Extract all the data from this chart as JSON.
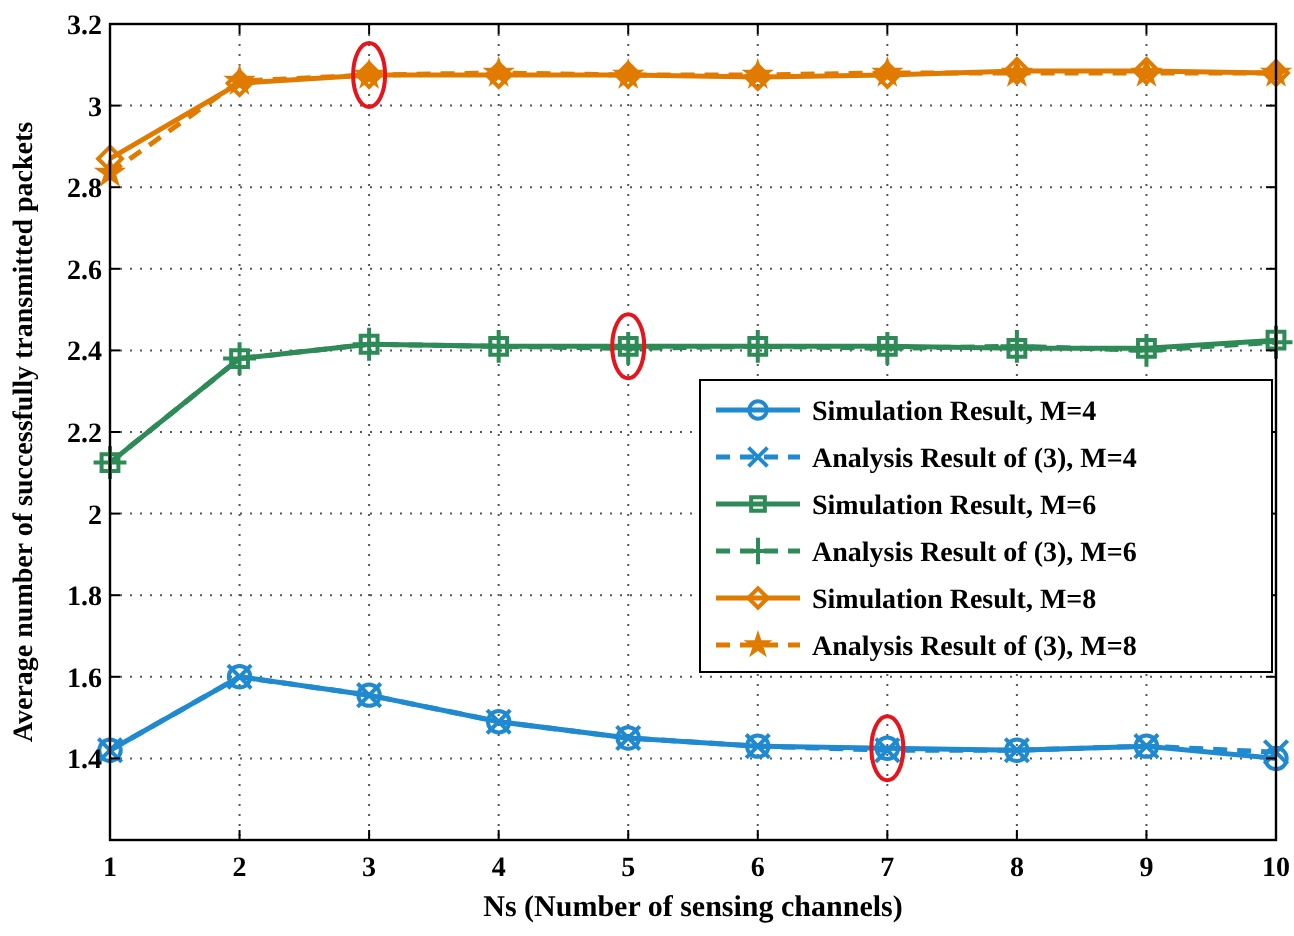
{
  "chart_data": {
    "type": "line",
    "xlabel": "Ns (Number of sensing channels)",
    "ylabel": "Average number of successfully transmitted packets",
    "x": [
      1,
      2,
      3,
      4,
      5,
      6,
      7,
      8,
      9,
      10
    ],
    "xlim": [
      1,
      10
    ],
    "xticks": [
      1,
      2,
      3,
      4,
      5,
      6,
      7,
      8,
      9,
      10
    ],
    "ylim": [
      1.2,
      3.2
    ],
    "yticks": [
      1.4,
      1.6,
      1.8,
      2,
      2.2,
      2.4,
      2.6,
      2.8,
      3,
      3.2
    ],
    "grid": true,
    "legend": "right",
    "series": [
      {
        "name": "Simulation Result, M=4",
        "color": "#1f8ad0",
        "marker": "circle",
        "line_style": "solid",
        "values": [
          1.42,
          1.6,
          1.555,
          1.49,
          1.45,
          1.43,
          1.425,
          1.42,
          1.43,
          1.4
        ]
      },
      {
        "name": "Analysis Result of (3), M=4",
        "color": "#1f8ad0",
        "marker": "cross",
        "line_style": "dashed",
        "values": [
          1.42,
          1.6,
          1.555,
          1.49,
          1.45,
          1.43,
          1.42,
          1.42,
          1.43,
          1.415
        ]
      },
      {
        "name": "Simulation Result, M=6",
        "color": "#2e8b57",
        "marker": "square",
        "line_style": "solid",
        "values": [
          2.125,
          2.38,
          2.415,
          2.41,
          2.41,
          2.41,
          2.41,
          2.405,
          2.405,
          2.425
        ]
      },
      {
        "name": "Analysis Result of (3), M=6",
        "color": "#2e8b57",
        "marker": "plus",
        "line_style": "dashed",
        "values": [
          2.125,
          2.38,
          2.415,
          2.41,
          2.405,
          2.41,
          2.405,
          2.41,
          2.4,
          2.42
        ]
      },
      {
        "name": "Simulation Result, M=8",
        "color": "#e07b00",
        "marker": "diamond",
        "line_style": "solid",
        "values": [
          2.87,
          3.055,
          3.075,
          3.075,
          3.075,
          3.07,
          3.075,
          3.085,
          3.085,
          3.08
        ]
      },
      {
        "name": "Analysis Result of (3), M=8",
        "color": "#e07b00",
        "marker": "star",
        "line_style": "dashed",
        "values": [
          2.835,
          3.06,
          3.075,
          3.08,
          3.075,
          3.075,
          3.08,
          3.08,
          3.08,
          3.08
        ]
      }
    ]
  }
}
